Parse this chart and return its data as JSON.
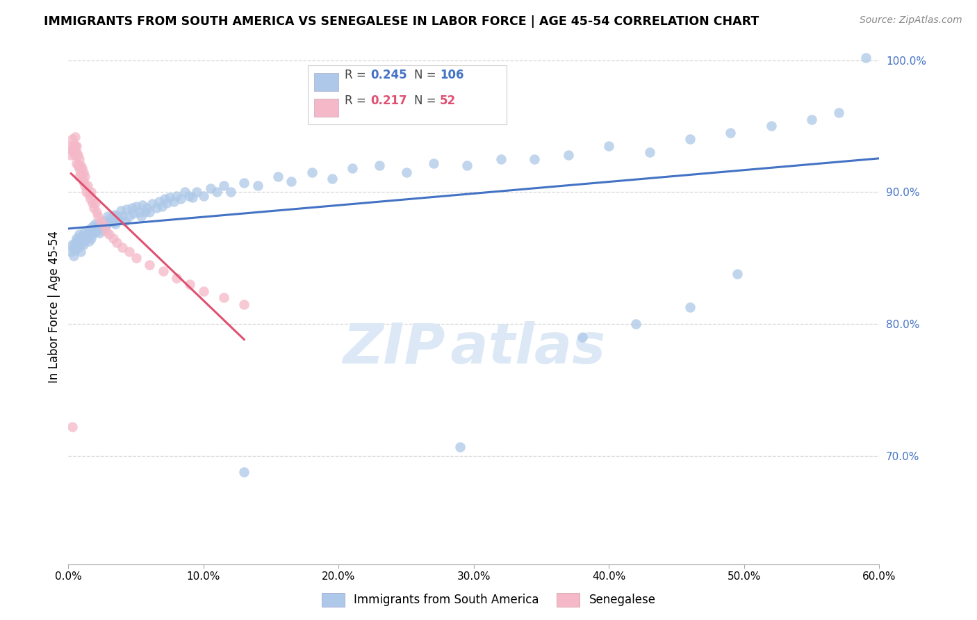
{
  "title": "IMMIGRANTS FROM SOUTH AMERICA VS SENEGALESE IN LABOR FORCE | AGE 45-54 CORRELATION CHART",
  "source_text": "Source: ZipAtlas.com",
  "ylabel": "In Labor Force | Age 45-54",
  "blue_label": "Immigrants from South America",
  "pink_label": "Senegalese",
  "blue_R": 0.245,
  "blue_N": 106,
  "pink_R": 0.217,
  "pink_N": 52,
  "blue_color": "#adc8e8",
  "blue_line_color": "#4472c4",
  "pink_color": "#f4b8c8",
  "pink_line_color": "#e05070",
  "ref_line_color": "#dddddd",
  "watermark_color": "#dce8f5",
  "xlim": [
    0.0,
    0.6
  ],
  "ylim": [
    0.618,
    1.008
  ],
  "xticks": [
    0.0,
    0.1,
    0.2,
    0.3,
    0.4,
    0.5,
    0.6
  ],
  "yticks": [
    0.7,
    0.8,
    0.9,
    1.0
  ],
  "ytick_labels": [
    "70.0%",
    "80.0%",
    "90.0%",
    "100.0%"
  ],
  "xtick_labels": [
    "0.0%",
    "10.0%",
    "20.0%",
    "30.0%",
    "40.0%",
    "50.0%",
    "60.0%"
  ],
  "blue_scatter_x": [
    0.002,
    0.003,
    0.004,
    0.004,
    0.005,
    0.005,
    0.006,
    0.006,
    0.007,
    0.007,
    0.008,
    0.008,
    0.009,
    0.009,
    0.01,
    0.01,
    0.011,
    0.012,
    0.012,
    0.013,
    0.014,
    0.015,
    0.015,
    0.016,
    0.017,
    0.018,
    0.018,
    0.019,
    0.02,
    0.021,
    0.022,
    0.023,
    0.024,
    0.025,
    0.026,
    0.027,
    0.028,
    0.029,
    0.03,
    0.031,
    0.033,
    0.034,
    0.035,
    0.036,
    0.038,
    0.039,
    0.04,
    0.042,
    0.043,
    0.045,
    0.047,
    0.048,
    0.05,
    0.052,
    0.054,
    0.055,
    0.057,
    0.058,
    0.06,
    0.062,
    0.065,
    0.067,
    0.069,
    0.071,
    0.073,
    0.075,
    0.078,
    0.08,
    0.083,
    0.086,
    0.089,
    0.092,
    0.095,
    0.1,
    0.105,
    0.11,
    0.115,
    0.12,
    0.13,
    0.14,
    0.155,
    0.165,
    0.18,
    0.195,
    0.21,
    0.23,
    0.25,
    0.27,
    0.295,
    0.32,
    0.345,
    0.37,
    0.4,
    0.43,
    0.46,
    0.49,
    0.52,
    0.55,
    0.57,
    0.59,
    0.38,
    0.42,
    0.46,
    0.495,
    0.29,
    0.13
  ],
  "blue_scatter_y": [
    0.855,
    0.86,
    0.852,
    0.858,
    0.856,
    0.862,
    0.86,
    0.865,
    0.858,
    0.864,
    0.862,
    0.868,
    0.855,
    0.863,
    0.861,
    0.867,
    0.86,
    0.864,
    0.87,
    0.866,
    0.868,
    0.872,
    0.863,
    0.869,
    0.865,
    0.874,
    0.868,
    0.872,
    0.876,
    0.87,
    0.875,
    0.869,
    0.875,
    0.872,
    0.878,
    0.873,
    0.876,
    0.882,
    0.877,
    0.88,
    0.877,
    0.883,
    0.876,
    0.882,
    0.879,
    0.886,
    0.882,
    0.878,
    0.887,
    0.882,
    0.888,
    0.884,
    0.889,
    0.885,
    0.882,
    0.89,
    0.885,
    0.888,
    0.885,
    0.891,
    0.888,
    0.893,
    0.889,
    0.895,
    0.892,
    0.896,
    0.893,
    0.897,
    0.895,
    0.9,
    0.897,
    0.896,
    0.9,
    0.897,
    0.903,
    0.9,
    0.905,
    0.9,
    0.907,
    0.905,
    0.912,
    0.908,
    0.915,
    0.91,
    0.918,
    0.92,
    0.915,
    0.922,
    0.92,
    0.925,
    0.925,
    0.928,
    0.935,
    0.93,
    0.94,
    0.945,
    0.95,
    0.955,
    0.96,
    1.002,
    0.79,
    0.8,
    0.813,
    0.838,
    0.707,
    0.688
  ],
  "pink_scatter_x": [
    0.002,
    0.002,
    0.003,
    0.003,
    0.004,
    0.004,
    0.005,
    0.005,
    0.005,
    0.006,
    0.006,
    0.006,
    0.007,
    0.007,
    0.008,
    0.008,
    0.008,
    0.009,
    0.009,
    0.01,
    0.01,
    0.011,
    0.011,
    0.012,
    0.012,
    0.013,
    0.014,
    0.015,
    0.016,
    0.017,
    0.018,
    0.019,
    0.02,
    0.021,
    0.022,
    0.024,
    0.026,
    0.028,
    0.03,
    0.033,
    0.036,
    0.04,
    0.045,
    0.05,
    0.06,
    0.07,
    0.08,
    0.09,
    0.1,
    0.115,
    0.13,
    0.003
  ],
  "pink_scatter_y": [
    0.935,
    0.928,
    0.932,
    0.94,
    0.93,
    0.935,
    0.928,
    0.935,
    0.942,
    0.93,
    0.935,
    0.922,
    0.928,
    0.92,
    0.918,
    0.925,
    0.912,
    0.92,
    0.915,
    0.918,
    0.91,
    0.915,
    0.908,
    0.912,
    0.905,
    0.9,
    0.905,
    0.898,
    0.895,
    0.9,
    0.892,
    0.888,
    0.892,
    0.885,
    0.882,
    0.878,
    0.875,
    0.87,
    0.868,
    0.865,
    0.862,
    0.858,
    0.855,
    0.85,
    0.845,
    0.84,
    0.835,
    0.83,
    0.825,
    0.82,
    0.815,
    0.722
  ]
}
